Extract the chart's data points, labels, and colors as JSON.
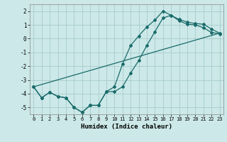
{
  "xlabel": "Humidex (Indice chaleur)",
  "background_color": "#cce8e8",
  "grid_color": "#a8cccc",
  "line_color": "#1a6b6b",
  "xlim": [
    -0.5,
    23.5
  ],
  "ylim": [
    -5.5,
    2.5
  ],
  "yticks": [
    -5,
    -4,
    -3,
    -2,
    -1,
    0,
    1,
    2
  ],
  "xticks": [
    0,
    1,
    2,
    3,
    4,
    5,
    6,
    7,
    8,
    9,
    10,
    11,
    12,
    13,
    14,
    15,
    16,
    17,
    18,
    19,
    20,
    21,
    22,
    23
  ],
  "line1_x": [
    0,
    1,
    2,
    3,
    4,
    5,
    6,
    7,
    8,
    9,
    10,
    11,
    12,
    13,
    14,
    15,
    16,
    17,
    18,
    19,
    20,
    21,
    22,
    23
  ],
  "line1_y": [
    -3.5,
    -4.3,
    -3.9,
    -4.2,
    -4.3,
    -5.0,
    -5.35,
    -4.85,
    -4.85,
    -3.85,
    -3.5,
    -1.85,
    -0.5,
    0.2,
    0.85,
    1.35,
    2.0,
    1.7,
    1.4,
    1.2,
    1.1,
    1.05,
    0.7,
    0.4
  ],
  "line2_x": [
    0,
    1,
    2,
    3,
    4,
    5,
    6,
    7,
    8,
    9,
    10,
    11,
    12,
    13,
    14,
    15,
    16,
    17,
    18,
    19,
    20,
    21,
    22,
    23
  ],
  "line2_y": [
    -3.5,
    -4.3,
    -3.9,
    -4.2,
    -4.3,
    -5.0,
    -5.35,
    -4.85,
    -4.85,
    -3.85,
    -3.85,
    -3.5,
    -2.5,
    -1.6,
    -0.5,
    0.5,
    1.5,
    1.7,
    1.3,
    1.05,
    1.0,
    0.8,
    0.45,
    0.35
  ],
  "line3_x": [
    0,
    23
  ],
  "line3_y": [
    -3.5,
    0.4
  ]
}
